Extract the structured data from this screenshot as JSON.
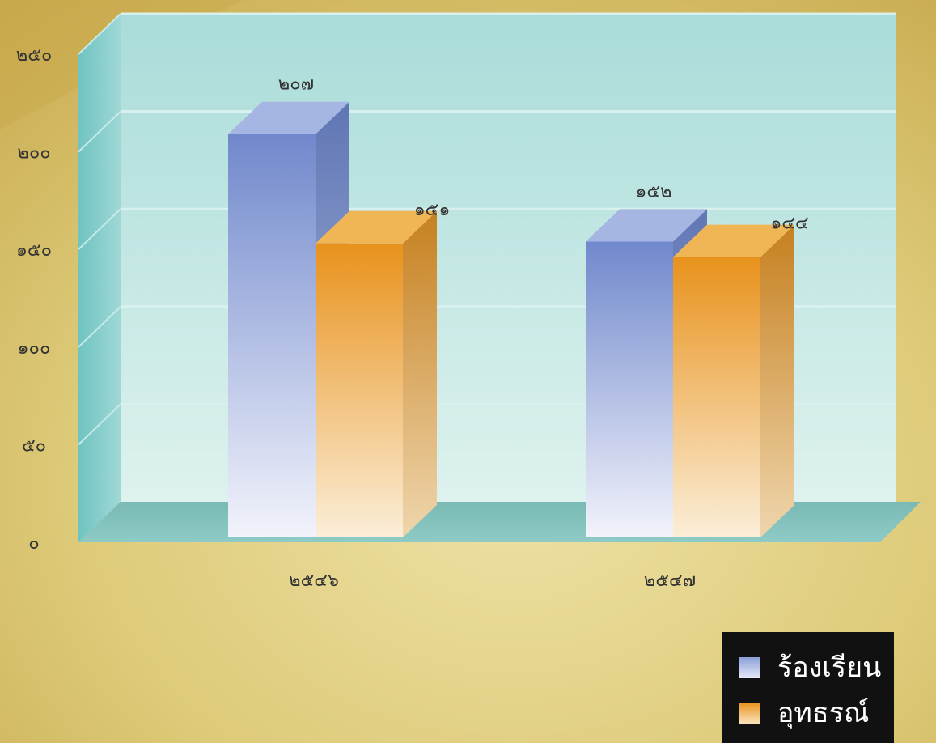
{
  "chart_data": {
    "type": "bar",
    "title": "",
    "xlabel": "",
    "ylabel": "",
    "categories": [
      "๒๕๔๖",
      "๒๕๔๗"
    ],
    "series": [
      {
        "name": "ร้องเรียน",
        "values": [
          207,
          152
        ],
        "labels": [
          "๒๐๗",
          "๑๕๒"
        ],
        "color": "#7b92cf"
      },
      {
        "name": "อุทธรณ์",
        "values": [
          151,
          144
        ],
        "labels": [
          "๑๕๑",
          "๑๔๔"
        ],
        "color": "#e7962c"
      }
    ],
    "ylim": [
      0,
      250
    ],
    "yticks": [
      0,
      50,
      100,
      150,
      200,
      250
    ],
    "ytick_labels": [
      "๐",
      "๕๐",
      "๑๐๐",
      "๑๕๐",
      "๒๐๐",
      "๒๕๐"
    ],
    "grid": true,
    "legend_position": "bottom-right"
  },
  "colors": {
    "background": "#d8c46e",
    "panel": "#bfe6e0",
    "floor": "#84c2bd",
    "legend_bg": "#111111"
  }
}
